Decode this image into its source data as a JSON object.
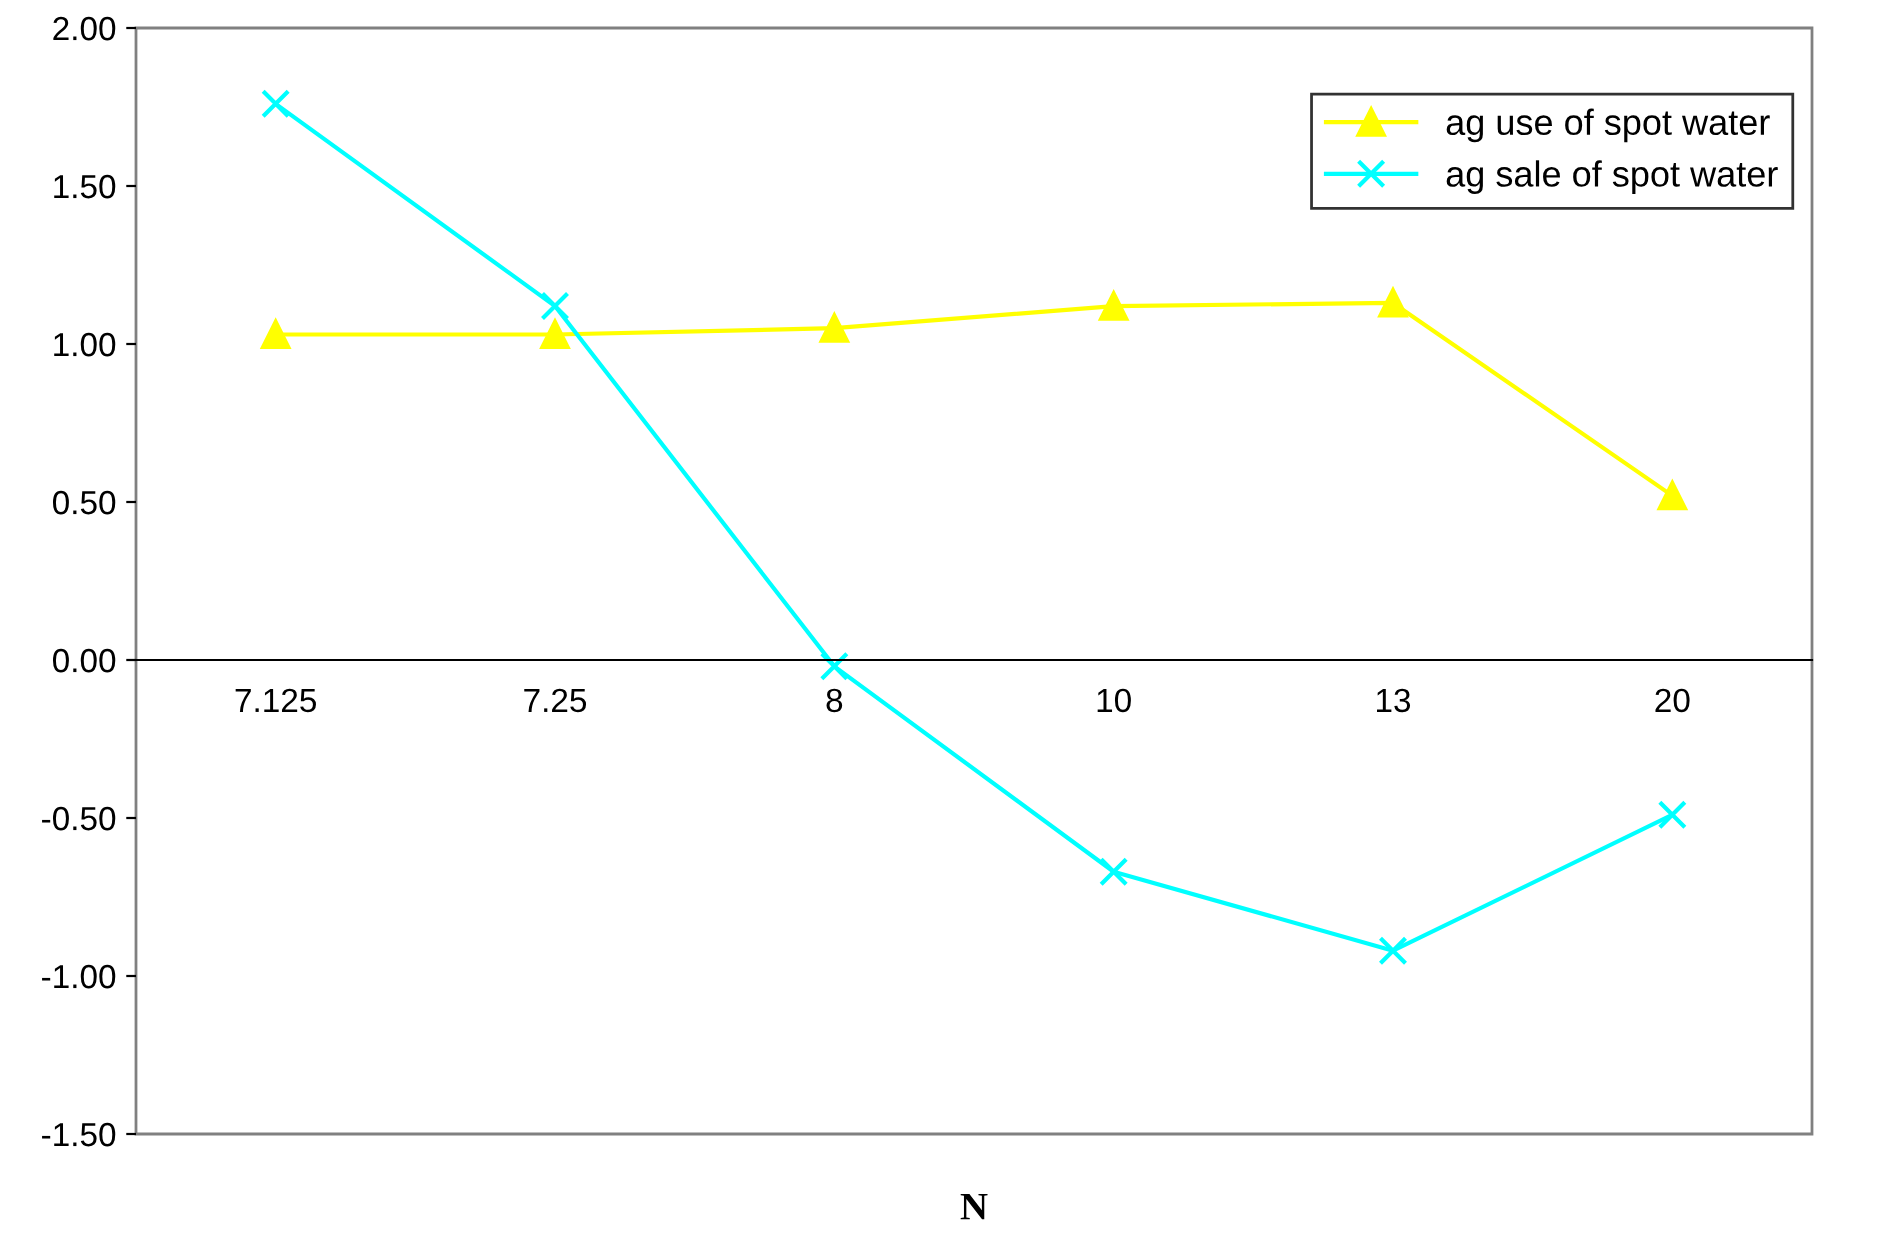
{
  "chart_data": {
    "type": "line",
    "xlabel": "N",
    "categories": [
      "7.125",
      "7.25",
      "8",
      "10",
      "13",
      "20"
    ],
    "series": [
      {
        "name": "ag use of spot water",
        "color": "#ffff00",
        "marker": "triangle",
        "values": [
          1.03,
          1.03,
          1.05,
          1.12,
          1.13,
          0.52
        ]
      },
      {
        "name": "ag sale of spot water",
        "color": "#00ffff",
        "marker": "cross",
        "values": [
          1.76,
          1.12,
          -0.02,
          -0.67,
          -0.92,
          -0.49
        ]
      }
    ],
    "ylim": [
      -1.5,
      2.0
    ],
    "yticks": [
      {
        "value": -1.5,
        "label": "-1.50"
      },
      {
        "value": -1.0,
        "label": "-1.00"
      },
      {
        "value": -0.5,
        "label": "-0.50"
      },
      {
        "value": 0,
        "label": "0.00"
      },
      {
        "value": 0.5,
        "label": "0.50"
      },
      {
        "value": 1.0,
        "label": "1.00"
      },
      {
        "value": 1.5,
        "label": "1.50"
      },
      {
        "value": 2.0,
        "label": "2.00"
      }
    ],
    "grid": false,
    "legend": "top right"
  }
}
